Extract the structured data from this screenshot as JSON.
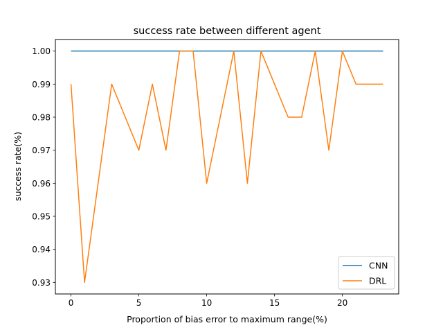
{
  "chart_data": {
    "type": "line",
    "title": "success rate between different agent",
    "xlabel": "Proportion of bias error to maximum range(%)",
    "ylabel": "success rate(%)",
    "xlim": [
      -1.15,
      24.15
    ],
    "ylim": [
      0.9265,
      1.0035
    ],
    "xticks": [
      0,
      5,
      10,
      15,
      20
    ],
    "yticks": [
      0.93,
      0.94,
      0.95,
      0.96,
      0.97,
      0.98,
      0.99,
      1.0
    ],
    "ytick_labels": [
      "0.93",
      "0.94",
      "0.95",
      "0.96",
      "0.97",
      "0.98",
      "0.99",
      "1.00"
    ],
    "grid": false,
    "legend_position": "lower right",
    "x": [
      0,
      1,
      2,
      3,
      4,
      5,
      6,
      7,
      8,
      9,
      10,
      11,
      12,
      13,
      14,
      15,
      16,
      17,
      18,
      19,
      20,
      21,
      22,
      23
    ],
    "series": [
      {
        "name": "CNN",
        "color": "#1f77b4",
        "values": [
          1.0,
          1.0,
          1.0,
          1.0,
          1.0,
          1.0,
          1.0,
          1.0,
          1.0,
          1.0,
          1.0,
          1.0,
          1.0,
          1.0,
          1.0,
          1.0,
          1.0,
          1.0,
          1.0,
          1.0,
          1.0,
          1.0,
          1.0,
          1.0
        ]
      },
      {
        "name": "DRL",
        "color": "#ff7f0e",
        "values": [
          0.99,
          0.93,
          0.96,
          0.99,
          0.98,
          0.97,
          0.99,
          0.97,
          1.0,
          1.0,
          0.96,
          0.98,
          1.0,
          0.96,
          1.0,
          0.99,
          0.98,
          0.98,
          1.0,
          0.97,
          1.0,
          0.99,
          0.99,
          0.99
        ]
      }
    ]
  }
}
